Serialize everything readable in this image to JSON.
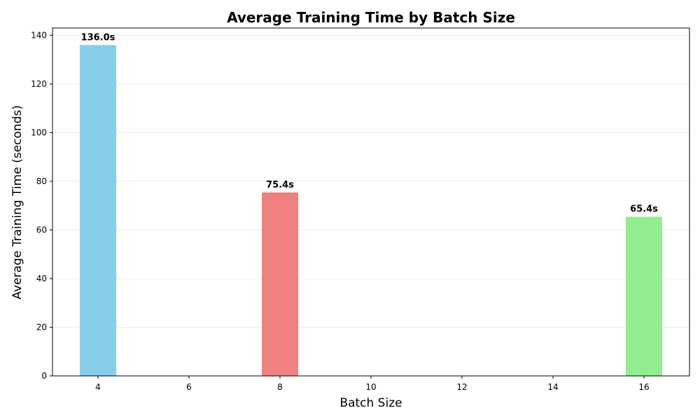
{
  "chart_data": {
    "type": "bar",
    "title": "Average Training Time by Batch Size",
    "xlabel": "Batch Size",
    "ylabel": "Average Training Time (seconds)",
    "x": [
      4,
      8,
      16
    ],
    "values": [
      136.0,
      75.4,
      65.4
    ],
    "data_labels": [
      "136.0s",
      "75.4s",
      "65.4s"
    ],
    "bar_colors": [
      "#87ceeb",
      "#f08080",
      "#90ee90"
    ],
    "bar_width": 0.8,
    "xlim": [
      3,
      17
    ],
    "ylim": [
      0,
      143
    ],
    "x_ticks": [
      4,
      6,
      8,
      10,
      12,
      14,
      16
    ],
    "y_ticks": [
      0,
      20,
      40,
      60,
      80,
      100,
      120,
      140
    ],
    "grid": "y",
    "legend": "none"
  }
}
